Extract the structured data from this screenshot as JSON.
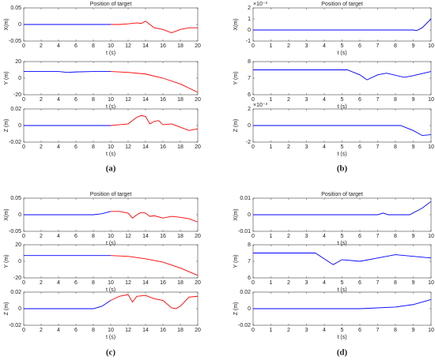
{
  "panel_labels": [
    "(a)",
    "(b)",
    "(c)",
    "(d)"
  ],
  "chart_data": [
    {
      "type": "line",
      "title": "Position of target",
      "xlabel": "t (s)",
      "ylabel": "X(m)",
      "xlim": [
        0,
        20
      ],
      "xticks": [
        0,
        2,
        4,
        6,
        8,
        10,
        12,
        14,
        16,
        18,
        20
      ],
      "ylim": [
        -0.05,
        0.05
      ],
      "yticks": [
        -0.05,
        0,
        0.05
      ],
      "x": [
        0,
        2,
        4,
        6,
        8,
        10,
        11,
        12,
        13,
        13.5,
        14,
        14.5,
        15,
        16,
        17,
        18,
        19,
        20
      ],
      "series": [
        {
          "color": "#0000ff",
          "values": [
            0,
            0,
            0,
            0,
            0,
            0,
            null,
            null,
            null,
            null,
            null,
            null,
            null,
            null,
            null,
            null,
            null,
            null
          ]
        },
        {
          "color": "#ff0000",
          "values": [
            null,
            null,
            null,
            null,
            null,
            0,
            0,
            0.002,
            0.005,
            0.003,
            0.01,
            0,
            -0.01,
            -0.015,
            -0.025,
            -0.015,
            -0.01,
            -0.01
          ]
        }
      ]
    },
    {
      "type": "line",
      "xlabel": "t (s)",
      "ylabel": "Y (m)",
      "xlim": [
        0,
        20
      ],
      "xticks": [
        0,
        2,
        4,
        6,
        8,
        10,
        12,
        14,
        16,
        18,
        20
      ],
      "ylim": [
        -20,
        20
      ],
      "yticks": [
        -20,
        0,
        20
      ],
      "x": [
        0,
        2,
        4,
        5,
        6,
        8,
        10,
        12,
        14,
        16,
        18,
        20
      ],
      "series": [
        {
          "color": "#0000ff",
          "values": [
            8,
            8,
            8,
            7,
            7.5,
            8,
            8,
            null,
            null,
            null,
            null,
            null
          ]
        },
        {
          "color": "#ff0000",
          "values": [
            null,
            null,
            null,
            null,
            null,
            null,
            8,
            7,
            5,
            0,
            -7,
            -17
          ]
        }
      ]
    },
    {
      "type": "line",
      "xlabel": "t (s)",
      "ylabel": "Z (m)",
      "xlim": [
        0,
        20
      ],
      "xticks": [
        0,
        2,
        4,
        6,
        8,
        10,
        12,
        14,
        16,
        18,
        20
      ],
      "ylim": [
        -0.02,
        0.02
      ],
      "yticks": [
        -0.02,
        0,
        0.02
      ],
      "x": [
        0,
        2,
        4,
        6,
        8,
        10,
        11,
        12,
        13,
        13.5,
        14,
        14.5,
        15,
        15.5,
        16,
        17,
        18,
        19,
        20
      ],
      "series": [
        {
          "color": "#0000ff",
          "values": [
            0,
            0,
            0,
            0,
            0,
            0,
            null,
            null,
            null,
            null,
            null,
            null,
            null,
            null,
            null,
            null,
            null,
            null,
            null
          ]
        },
        {
          "color": "#ff0000",
          "values": [
            null,
            null,
            null,
            null,
            null,
            0,
            0.001,
            0.002,
            0.01,
            0.012,
            0.011,
            0.002,
            0.005,
            0.006,
            0.001,
            0.002,
            -0.002,
            -0.006,
            -0.004
          ]
        }
      ]
    },
    {
      "type": "line",
      "title": "Position of target",
      "xlabel": "t (s)",
      "ylabel": "X(m)",
      "y_exponent": "×10⁻³",
      "xlim": [
        0,
        10
      ],
      "xticks": [
        0,
        1,
        2,
        3,
        4,
        5,
        6,
        7,
        8,
        9,
        10
      ],
      "ylim": [
        -1,
        2
      ],
      "yticks": [
        -1,
        0,
        1,
        2
      ],
      "x": [
        0,
        2,
        4,
        6,
        8,
        9,
        9.2,
        9.5,
        10
      ],
      "series": [
        {
          "color": "#0000ff",
          "values": [
            0,
            0,
            0,
            0,
            0,
            0,
            -0.05,
            0.2,
            1
          ]
        }
      ]
    },
    {
      "type": "line",
      "xlabel": "t (s)",
      "ylabel": "Y (m)",
      "xlim": [
        0,
        10
      ],
      "xticks": [
        0,
        1,
        2,
        3,
        4,
        5,
        6,
        7,
        8,
        9,
        10
      ],
      "ylim": [
        6,
        8
      ],
      "yticks": [
        6,
        7,
        8
      ],
      "x": [
        0,
        2,
        4,
        5.3,
        6,
        6.4,
        7,
        7.5,
        8.5,
        9,
        10
      ],
      "series": [
        {
          "color": "#0000ff",
          "values": [
            7.5,
            7.5,
            7.5,
            7.5,
            7.2,
            6.9,
            7.2,
            7.3,
            7.05,
            7.15,
            7.4
          ]
        }
      ]
    },
    {
      "type": "line",
      "xlabel": "t (s)",
      "ylabel": "Z (m)",
      "y_exponent": "×10⁻³",
      "xlim": [
        0,
        10
      ],
      "xticks": [
        0,
        1,
        2,
        3,
        4,
        5,
        6,
        7,
        8,
        9,
        10
      ],
      "ylim": [
        -2,
        2
      ],
      "yticks": [
        -2,
        0,
        2
      ],
      "x": [
        0,
        2,
        4,
        6,
        8.3,
        9,
        9.5,
        10
      ],
      "series": [
        {
          "color": "#0000ff",
          "values": [
            0,
            0,
            0,
            0,
            0,
            -0.6,
            -1.2,
            -1.1
          ]
        }
      ]
    },
    {
      "type": "line",
      "title": "Position of target",
      "xlabel": "t (s)",
      "ylabel": "X(m)",
      "xlim": [
        0,
        20
      ],
      "xticks": [
        0,
        2,
        4,
        6,
        8,
        10,
        12,
        14,
        16,
        18,
        20
      ],
      "ylim": [
        -0.05,
        0.05
      ],
      "yticks": [
        -0.05,
        0,
        0.05
      ],
      "x": [
        0,
        2,
        4,
        6,
        8,
        9,
        10,
        11,
        12,
        12.5,
        13,
        13.5,
        14,
        14.5,
        15,
        16,
        17,
        18,
        19,
        20
      ],
      "series": [
        {
          "color": "#0000ff",
          "values": [
            0,
            0,
            0,
            0,
            0,
            0.003,
            0.01,
            null,
            null,
            null,
            null,
            null,
            null,
            null,
            null,
            null,
            null,
            null,
            null,
            null
          ]
        },
        {
          "color": "#ff0000",
          "values": [
            null,
            null,
            null,
            null,
            null,
            null,
            0.01,
            0.01,
            0.005,
            -0.01,
            0,
            0.007,
            0.005,
            -0.005,
            -0.003,
            -0.01,
            -0.005,
            -0.008,
            -0.012,
            -0.022
          ]
        }
      ]
    },
    {
      "type": "line",
      "xlabel": "t (s)",
      "ylabel": "Y (m)",
      "xlim": [
        0,
        20
      ],
      "xticks": [
        0,
        2,
        4,
        6,
        8,
        10,
        12,
        14,
        16,
        18,
        20
      ],
      "ylim": [
        -20,
        20
      ],
      "yticks": [
        -20,
        0,
        20
      ],
      "x": [
        0,
        2,
        4,
        6,
        8,
        10,
        12,
        14,
        16,
        18,
        20
      ],
      "series": [
        {
          "color": "#0000ff",
          "values": [
            7,
            7,
            7,
            7,
            7,
            7,
            null,
            null,
            null,
            null,
            null
          ]
        },
        {
          "color": "#ff0000",
          "values": [
            null,
            null,
            null,
            null,
            null,
            7,
            6,
            3,
            -1,
            -8,
            -17
          ]
        }
      ]
    },
    {
      "type": "line",
      "xlabel": "t (s)",
      "ylabel": "Z (m)",
      "xlim": [
        0,
        20
      ],
      "xticks": [
        0,
        2,
        4,
        6,
        8,
        10,
        12,
        14,
        16,
        18,
        20
      ],
      "ylim": [
        -0.02,
        0.02
      ],
      "yticks": [
        -0.02,
        0,
        0.02
      ],
      "x": [
        0,
        2,
        4,
        6,
        8,
        9,
        10,
        11,
        12,
        12.5,
        13,
        14,
        15,
        16,
        17,
        17.5,
        18,
        19,
        20
      ],
      "series": [
        {
          "color": "#0000ff",
          "values": [
            0,
            0,
            0,
            0,
            0,
            0.003,
            0.01,
            null,
            null,
            null,
            null,
            null,
            null,
            null,
            null,
            null,
            null,
            null,
            null
          ]
        },
        {
          "color": "#ff0000",
          "values": [
            null,
            null,
            null,
            null,
            null,
            null,
            0.01,
            0.015,
            0.017,
            0.008,
            0.015,
            0.016,
            0.012,
            0.01,
            0.001,
            0,
            0.003,
            0.014,
            0.015
          ]
        }
      ]
    },
    {
      "type": "line",
      "title": "Position of target",
      "xlabel": "t (s)",
      "ylabel": "X(m)",
      "xlim": [
        0,
        10
      ],
      "xticks": [
        0,
        1,
        2,
        3,
        4,
        5,
        6,
        7,
        8,
        9,
        10
      ],
      "ylim": [
        -0.01,
        0.01
      ],
      "yticks": [
        -0.01,
        0,
        0.01
      ],
      "x": [
        0,
        2,
        4,
        6,
        7,
        7.3,
        7.6,
        8.8,
        9.5,
        10
      ],
      "series": [
        {
          "color": "#0000ff",
          "values": [
            0,
            0,
            0,
            0,
            0,
            0.001,
            0,
            0,
            0.004,
            0.008
          ]
        }
      ]
    },
    {
      "type": "line",
      "xlabel": "t (s)",
      "ylabel": "Y (m)",
      "xlim": [
        0,
        10
      ],
      "xticks": [
        0,
        1,
        2,
        3,
        4,
        5,
        6,
        7,
        8,
        9,
        10
      ],
      "ylim": [
        6,
        8
      ],
      "yticks": [
        6,
        7,
        8
      ],
      "x": [
        0,
        2,
        3.5,
        4.5,
        5,
        6,
        7,
        8,
        9,
        10
      ],
      "series": [
        {
          "color": "#0000ff",
          "values": [
            7.5,
            7.5,
            7.5,
            6.8,
            7.1,
            7,
            7.2,
            7.4,
            7.3,
            7.2
          ]
        }
      ]
    },
    {
      "type": "line",
      "xlabel": "t (s)",
      "ylabel": "Z (m)",
      "xlim": [
        0,
        10
      ],
      "xticks": [
        0,
        1,
        2,
        3,
        4,
        5,
        6,
        7,
        8,
        9,
        10
      ],
      "ylim": [
        -0.02,
        0.02
      ],
      "yticks": [
        -0.02,
        0,
        0.02
      ],
      "x": [
        0,
        2,
        4,
        6,
        8,
        9,
        10
      ],
      "series": [
        {
          "color": "#0000ff",
          "values": [
            0,
            0,
            0,
            0,
            0.002,
            0.005,
            0.011
          ]
        }
      ]
    }
  ]
}
